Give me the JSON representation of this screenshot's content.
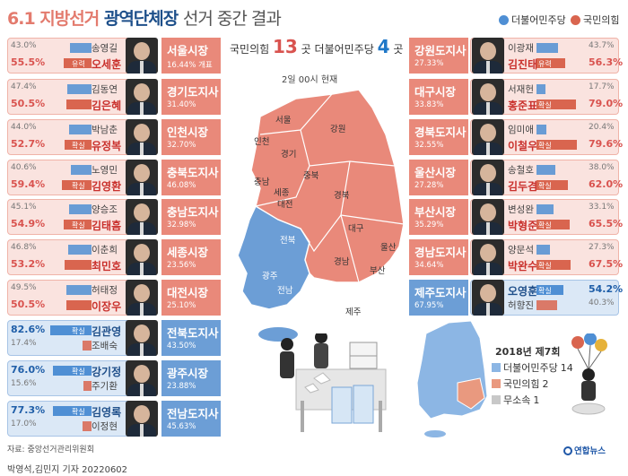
{
  "title": {
    "date": "6.1",
    "main": "지방선거",
    "sub": "광역단체장",
    "rest": "선거 중간 결과"
  },
  "legend": [
    {
      "label": "더불어민주당",
      "color": "#4f8fd4"
    },
    {
      "label": "국민의힘",
      "color": "#d9654f"
    }
  ],
  "summary": {
    "ppp_label": "국민의힘",
    "ppp_count": "13",
    "ppp_unit": "곳",
    "dp_label": "더불어민주당",
    "dp_count": "4",
    "dp_unit": "곳"
  },
  "as_of": "2일 00시 현재",
  "map_labels": {
    "seoul": "서울",
    "incheon": "인천",
    "gyeonggi": "경기",
    "gangwon": "강원",
    "chungbuk": "충북",
    "chungnam": "충남",
    "sejong": "세종",
    "daejeon": "대전",
    "gyeongbuk": "경북",
    "daegu": "대구",
    "jeonbuk": "전북",
    "gwangju": "광주",
    "jeonnam": "전남",
    "gyeongnam": "경남",
    "ulsan": "울산",
    "busan": "부산",
    "jeju": "제주"
  },
  "chart_data": {
    "type": "bar",
    "title": "6.1 지방선거 광역단체장 선거 중간 결과",
    "races": [
      {
        "region": "서울시장",
        "count_pct": "16.44% 개표",
        "winner": {
          "name": "오세훈",
          "party": "국민의힘",
          "pct": 55.5,
          "status": "유력"
        },
        "runner": {
          "name": "송영길",
          "party": "더불어민주당",
          "pct": 43.0
        }
      },
      {
        "region": "경기도지사",
        "count_pct": "31.40%",
        "winner": {
          "name": "김은혜",
          "party": "국민의힘",
          "pct": 50.5,
          "status": ""
        },
        "runner": {
          "name": "김동연",
          "party": "더불어민주당",
          "pct": 47.4
        }
      },
      {
        "region": "인천시장",
        "count_pct": "32.70%",
        "winner": {
          "name": "유정복",
          "party": "국민의힘",
          "pct": 52.7,
          "status": "확실"
        },
        "runner": {
          "name": "박남춘",
          "party": "더불어민주당",
          "pct": 44.0
        }
      },
      {
        "region": "충북도지사",
        "count_pct": "46.08%",
        "winner": {
          "name": "김영환",
          "party": "국민의힘",
          "pct": 59.4,
          "status": "확실"
        },
        "runner": {
          "name": "노영민",
          "party": "더불어민주당",
          "pct": 40.6
        }
      },
      {
        "region": "충남도지사",
        "count_pct": "32.98%",
        "winner": {
          "name": "김태흠",
          "party": "국민의힘",
          "pct": 54.9,
          "status": "확실"
        },
        "runner": {
          "name": "양승조",
          "party": "더불어민주당",
          "pct": 45.1
        }
      },
      {
        "region": "세종시장",
        "count_pct": "23.56%",
        "winner": {
          "name": "최민호",
          "party": "국민의힘",
          "pct": 53.2,
          "status": ""
        },
        "runner": {
          "name": "이춘희",
          "party": "더불어민주당",
          "pct": 46.8
        }
      },
      {
        "region": "대전시장",
        "count_pct": "25.10%",
        "winner": {
          "name": "이장우",
          "party": "국민의힘",
          "pct": 50.5,
          "status": ""
        },
        "runner": {
          "name": "허태정",
          "party": "더불어민주당",
          "pct": 49.5
        }
      },
      {
        "region": "전북도지사",
        "count_pct": "43.50%",
        "winner": {
          "name": "김관영",
          "party": "더불어민주당",
          "pct": 82.6,
          "status": "확실"
        },
        "runner": {
          "name": "조배숙",
          "party": "국민의힘",
          "pct": 17.4
        }
      },
      {
        "region": "광주시장",
        "count_pct": "23.88%",
        "winner": {
          "name": "강기정",
          "party": "더불어민주당",
          "pct": 76.0,
          "status": "확실"
        },
        "runner": {
          "name": "주기환",
          "party": "국민의힘",
          "pct": 15.6
        }
      },
      {
        "region": "전남도지사",
        "count_pct": "45.63%",
        "winner": {
          "name": "김영록",
          "party": "더불어민주당",
          "pct": 77.3,
          "status": "확실"
        },
        "runner": {
          "name": "이정현",
          "party": "국민의힘",
          "pct": 17.0
        }
      },
      {
        "region": "강원도지사",
        "count_pct": "27.33%",
        "winner": {
          "name": "김진태",
          "party": "국민의힘",
          "pct": 56.3,
          "status": "유력"
        },
        "runner": {
          "name": "이광재",
          "party": "더불어민주당",
          "pct": 43.7
        }
      },
      {
        "region": "대구시장",
        "count_pct": "33.83%",
        "winner": {
          "name": "홍준표",
          "party": "국민의힘",
          "pct": 79.0,
          "status": "확실"
        },
        "runner": {
          "name": "서재헌",
          "party": "더불어민주당",
          "pct": 17.7
        }
      },
      {
        "region": "경북도지사",
        "count_pct": "32.55%",
        "winner": {
          "name": "이철우",
          "party": "국민의힘",
          "pct": 79.6,
          "status": "확실"
        },
        "runner": {
          "name": "임미애",
          "party": "더불어민주당",
          "pct": 20.4
        }
      },
      {
        "region": "울산시장",
        "count_pct": "27.28%",
        "winner": {
          "name": "김두겸",
          "party": "국민의힘",
          "pct": 62.0,
          "status": "확실"
        },
        "runner": {
          "name": "송철호",
          "party": "더불어민주당",
          "pct": 38.0
        }
      },
      {
        "region": "부산시장",
        "count_pct": "35.29%",
        "winner": {
          "name": "박형준",
          "party": "국민의힘",
          "pct": 65.5,
          "status": "확실"
        },
        "runner": {
          "name": "변성완",
          "party": "더불어민주당",
          "pct": 33.1
        }
      },
      {
        "region": "경남도지사",
        "count_pct": "34.64%",
        "winner": {
          "name": "박완수",
          "party": "국민의힘",
          "pct": 67.5,
          "status": "확실"
        },
        "runner": {
          "name": "양문석",
          "party": "더불어민주당",
          "pct": 27.3
        }
      },
      {
        "region": "제주도지사",
        "count_pct": "67.95%",
        "winner": {
          "name": "오영훈",
          "party": "더불어민주당",
          "pct": 54.2,
          "status": "확실"
        },
        "runner": {
          "name": "허향진",
          "party": "국민의힘",
          "pct": 40.3
        }
      }
    ]
  },
  "result_2018": {
    "title": "2018년 제7회",
    "items": [
      {
        "label": "더불어민주당",
        "count": "14",
        "color": "#8cb6e4"
      },
      {
        "label": "국민의힘",
        "count": "2",
        "color": "#e9997f"
      },
      {
        "label": "무소속",
        "count": "1",
        "color": "#c8c8c8"
      }
    ]
  },
  "source": "자료: 중앙선거관리위원회",
  "byline": "박영석,김민지 기자  20220602",
  "brand": "연합뉴스"
}
